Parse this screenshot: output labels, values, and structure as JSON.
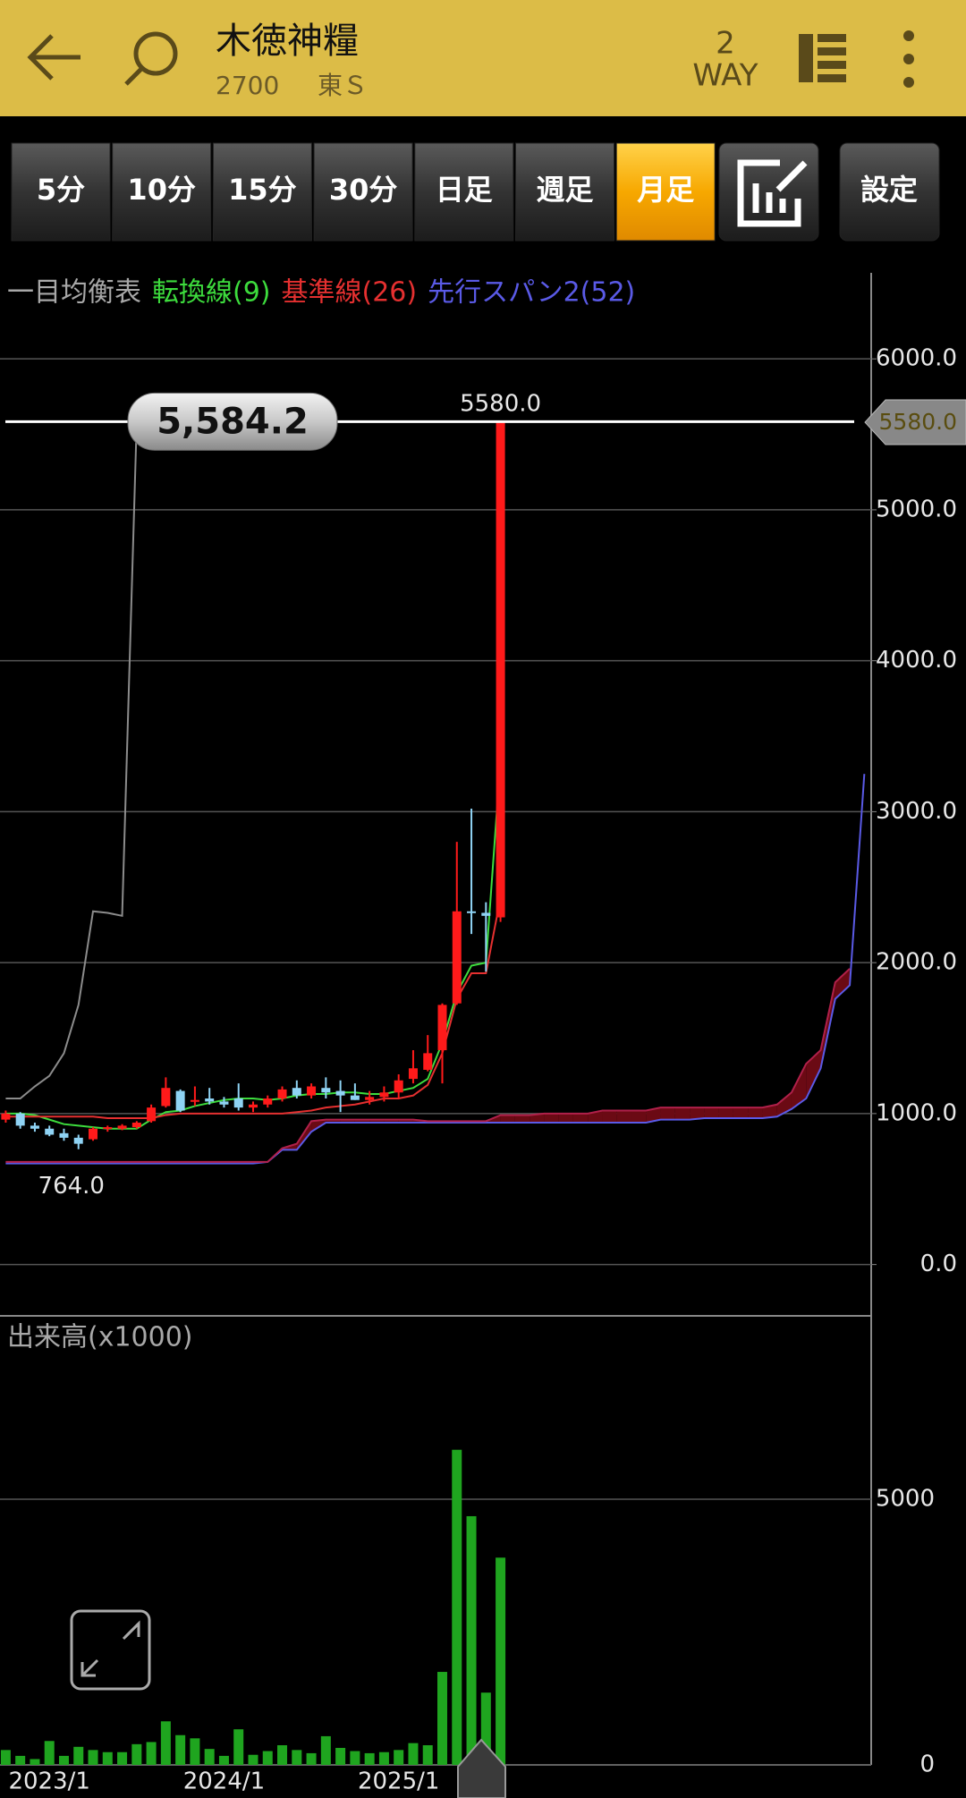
{
  "header": {
    "title": "木徳神糧",
    "code": "2700",
    "market": "東Ｓ",
    "way_number": "2",
    "way_label": "WAY",
    "tabs": [
      "5分",
      "10分",
      "15分",
      "30分",
      "日足",
      "週足",
      "月足"
    ],
    "active_tab": 6,
    "settings_button": "設定"
  },
  "chart_data": [
    {
      "type": "candlestick",
      "indicator": "一目均衡表",
      "categories": [
        null,
        null,
        null,
        "2023/1",
        null,
        null,
        null,
        null,
        null,
        null,
        null,
        null,
        null,
        null,
        null,
        "2024/1",
        null,
        null,
        null,
        null,
        null,
        null,
        null,
        null,
        null,
        null,
        null,
        "2025/1",
        null,
        null,
        null,
        null,
        null,
        null,
        null,
        null,
        null,
        null,
        null,
        null,
        null,
        null,
        null,
        null,
        null,
        null,
        null,
        null,
        null,
        null,
        null,
        null,
        null,
        null,
        null,
        null,
        null,
        null,
        null,
        null
      ],
      "open": [
        960,
        1000,
        920,
        900,
        870,
        840,
        830,
        900,
        900,
        910,
        950,
        1050,
        1150,
        1080,
        1100,
        1080,
        1100,
        1040,
        1060,
        1100,
        1170,
        1120,
        1170,
        1150,
        1120,
        1090,
        1110,
        1140,
        1230,
        1290,
        1420,
        1730,
        2340,
        2330,
        2300,
        null,
        null,
        null,
        null,
        null,
        null,
        null,
        null,
        null,
        null,
        null,
        null,
        null,
        null,
        null,
        null,
        null,
        null,
        null,
        null,
        null,
        null,
        null,
        null,
        null
      ],
      "high": [
        1020,
        1010,
        940,
        920,
        900,
        860,
        910,
        920,
        930,
        950,
        1060,
        1240,
        1160,
        1180,
        1170,
        1110,
        1200,
        1080,
        1120,
        1180,
        1220,
        1200,
        1240,
        1220,
        1200,
        1150,
        1180,
        1260,
        1420,
        1520,
        1730,
        2800,
        3020,
        2400,
        5580,
        null,
        null,
        null,
        null,
        null,
        null,
        null,
        null,
        null,
        null,
        null,
        null,
        null,
        null,
        null,
        null,
        null,
        null,
        null,
        null,
        null,
        null,
        null,
        null,
        null
      ],
      "low": [
        940,
        900,
        880,
        850,
        820,
        764,
        820,
        880,
        890,
        900,
        940,
        1040,
        1010,
        1050,
        1060,
        1040,
        1020,
        1010,
        1040,
        1080,
        1100,
        1100,
        1100,
        1010,
        1090,
        1060,
        1080,
        1100,
        1200,
        1280,
        1200,
        1720,
        2190,
        1940,
        2270,
        null,
        null,
        null,
        null,
        null,
        null,
        null,
        null,
        null,
        null,
        null,
        null,
        null,
        null,
        null,
        null,
        null,
        null,
        null,
        null,
        null,
        null,
        null,
        null,
        null
      ],
      "close": [
        1000,
        920,
        900,
        860,
        840,
        800,
        900,
        910,
        920,
        940,
        1040,
        1170,
        1020,
        1090,
        1080,
        1060,
        1040,
        1060,
        1100,
        1160,
        1120,
        1180,
        1140,
        1120,
        1090,
        1110,
        1140,
        1220,
        1300,
        1400,
        1720,
        2340,
        2330,
        2310,
        5580,
        null,
        null,
        null,
        null,
        null,
        null,
        null,
        null,
        null,
        null,
        null,
        null,
        null,
        null,
        null,
        null,
        null,
        null,
        null,
        null,
        null,
        null,
        null,
        null,
        null
      ],
      "up_color": "#ff1a1a",
      "down_color": "#8fd3f4",
      "series": [
        {
          "name": "転換線(9)",
          "color": "#3ddc3d",
          "values": [
            1000,
            1000,
            990,
            960,
            930,
            920,
            910,
            900,
            900,
            900,
            960,
            1010,
            1020,
            1050,
            1070,
            1090,
            1100,
            1100,
            1090,
            1100,
            1120,
            1130,
            1130,
            1140,
            1140,
            1130,
            1130,
            1150,
            1170,
            1230,
            1470,
            1800,
            1980,
            2000,
            3340,
            null,
            null,
            null,
            null,
            null,
            null,
            null,
            null,
            null,
            null,
            null,
            null,
            null,
            null,
            null,
            null,
            null,
            null,
            null,
            null,
            null,
            null,
            null,
            null,
            null
          ]
        },
        {
          "name": "基準線(26)",
          "color": "#e53030",
          "values": [
            980,
            980,
            980,
            980,
            980,
            980,
            980,
            970,
            970,
            970,
            970,
            990,
            1000,
            1000,
            1000,
            1000,
            1000,
            1000,
            1000,
            1000,
            1010,
            1020,
            1040,
            1050,
            1060,
            1080,
            1100,
            1100,
            1120,
            1190,
            1400,
            1760,
            1930,
            1930,
            2430,
            null,
            null,
            null,
            null,
            null,
            null,
            null,
            null,
            null,
            null,
            null,
            null,
            null,
            null,
            null,
            null,
            null,
            null,
            null,
            null,
            null,
            null,
            null,
            null,
            null
          ]
        },
        {
          "name": "先行スパン2(52)",
          "color": "#5a5ae6",
          "values": [
            670,
            670,
            670,
            670,
            670,
            670,
            670,
            670,
            670,
            670,
            670,
            670,
            670,
            670,
            670,
            670,
            670,
            670,
            680,
            760,
            760,
            880,
            940,
            940,
            940,
            940,
            940,
            940,
            940,
            940,
            940,
            940,
            940,
            940,
            940,
            940,
            940,
            940,
            940,
            940,
            940,
            940,
            940,
            940,
            940,
            960,
            960,
            960,
            970,
            970,
            970,
            970,
            970,
            980,
            1030,
            1100,
            1300,
            1760,
            1850,
            3250
          ]
        },
        {
          "color": "#b0204a",
          "values": [
            680,
            680,
            680,
            680,
            680,
            680,
            680,
            680,
            680,
            680,
            680,
            680,
            680,
            680,
            680,
            680,
            680,
            680,
            680,
            770,
            800,
            950,
            960,
            960,
            960,
            960,
            960,
            960,
            960,
            950,
            950,
            950,
            950,
            950,
            990,
            990,
            990,
            1000,
            1000,
            1000,
            1000,
            1020,
            1020,
            1020,
            1020,
            1040,
            1040,
            1040,
            1040,
            1040,
            1040,
            1040,
            1040,
            1060,
            1140,
            1330,
            1420,
            1870,
            1960,
            null
          ]
        },
        {
          "color": "#8c8c8c",
          "values": [
            1100,
            1100,
            1180,
            1250,
            1400,
            1720,
            2340,
            2330,
            2310,
            5580,
            null,
            null,
            null,
            null,
            null,
            null,
            null,
            null,
            null,
            null,
            null,
            null,
            null,
            null,
            null,
            null,
            null,
            null,
            null,
            null,
            null,
            null,
            null,
            null,
            null,
            null,
            null,
            null,
            null,
            null,
            null,
            null,
            null,
            null,
            null,
            null,
            null,
            null,
            null,
            null,
            null,
            null,
            null,
            null,
            null,
            null,
            null,
            null,
            null,
            null
          ]
        }
      ],
      "cloud_color": "#6b0a14",
      "ylim": [
        -340,
        6570
      ],
      "yticks": [
        {
          "value": 0,
          "label": "0.0"
        },
        {
          "value": 1000,
          "label": "1000.0"
        },
        {
          "value": 2000,
          "label": "2000.0"
        },
        {
          "value": 3000,
          "label": "3000.0"
        },
        {
          "value": 4000,
          "label": "4000.0"
        },
        {
          "value": 5000,
          "label": "5000.0"
        },
        {
          "value": 6000,
          "label": "6000.0"
        }
      ],
      "high_label": {
        "value": 5580,
        "label": "5580.0"
      },
      "low_label": {
        "value": 764,
        "label": "764.0"
      },
      "crosshair": {
        "value": 5584.2,
        "label": "5,584.2"
      },
      "last_price": {
        "value": 5580,
        "label": "5580.0"
      },
      "grid": true
    },
    {
      "type": "bar",
      "title": "出来高(x1000)",
      "color": "#1fa51f",
      "values": [
        280,
        170,
        110,
        450,
        170,
        340,
        280,
        240,
        240,
        390,
        430,
        820,
        560,
        500,
        300,
        170,
        670,
        190,
        260,
        370,
        280,
        220,
        540,
        320,
        260,
        220,
        240,
        280,
        410,
        370,
        1750,
        5930,
        4680,
        1360,
        3900,
        null,
        null,
        null,
        null,
        null,
        null,
        null,
        null,
        null,
        null,
        null,
        null,
        null,
        null,
        null,
        null,
        null,
        null,
        null,
        null,
        null,
        null,
        null,
        null,
        null
      ],
      "ylim": [
        0,
        8450
      ],
      "yticks": [
        0,
        5000
      ],
      "grid": true
    }
  ]
}
